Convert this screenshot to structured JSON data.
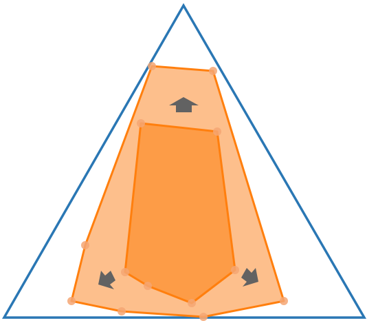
{
  "diagram": {
    "description_kind": "geometric-polygon-expansion",
    "colors": {
      "triangle_stroke": "#2a77b4",
      "outer_fill": "#fdbf8c",
      "outer_stroke": "#ff7f0e",
      "inner_fill": "#fd9c47",
      "inner_stroke": "#ff7f0e",
      "vertex_dot": "#f5a673",
      "arrow_fill": "#626262",
      "background": "#ffffff"
    },
    "icons": [
      "arrow-up-icon",
      "arrow-down-left-icon",
      "arrow-down-right-icon"
    ]
  }
}
